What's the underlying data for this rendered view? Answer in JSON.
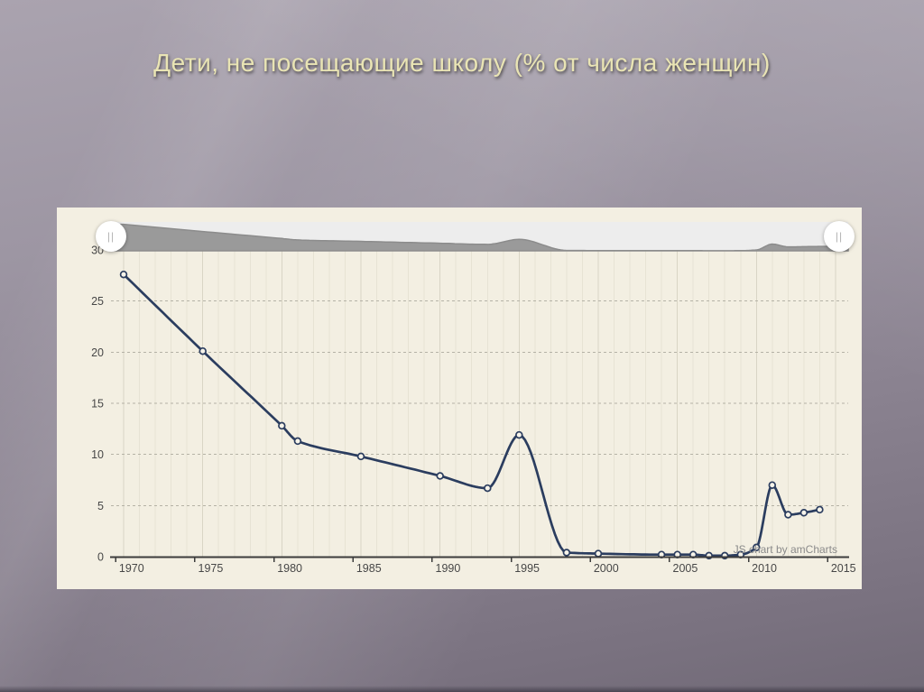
{
  "slide": {
    "title": "Дети, не посещающие школу (% от числа женщин)",
    "title_color": "#e9e4b4",
    "background_top": "#aaa3af",
    "background_bottom": "#716a77"
  },
  "chart": {
    "watermark": "JS chart by amCharts",
    "background": "#f3efe2",
    "line_color": "#2b3d5f",
    "bullet_fill": "#f7f4ea",
    "grid_vertical_color": "#e7e3d4",
    "grid_vertical_major_color": "#d9d5c5",
    "grid_horizontal_color": "#b5b2a6",
    "axis_color": "#3c3c3c",
    "label_color": "#474747",
    "scrollbar": {
      "background": "#ededed",
      "area_fill": "#9a9a9a",
      "area_stroke": "#8c8c8c",
      "handle_glyph": "||"
    }
  },
  "chart_data": {
    "type": "line",
    "title": "Дети, не посещающие школу (% от числа женщин)",
    "smoothed": true,
    "grid": true,
    "legend": false,
    "x": [
      1970,
      1975,
      1980,
      1981,
      1985,
      1990,
      1993,
      1995,
      1998,
      2000,
      2004,
      2005,
      2006,
      2007,
      2008,
      2009,
      2010,
      2011,
      2012,
      2013,
      2014
    ],
    "y": [
      27.6,
      20.1,
      12.8,
      11.3,
      9.8,
      7.9,
      6.7,
      11.9,
      0.4,
      0.3,
      0.2,
      0.2,
      0.2,
      0.1,
      0.1,
      0.2,
      0.9,
      7.0,
      4.1,
      4.3,
      4.6
    ],
    "x_ticks": [
      1970,
      1975,
      1980,
      1985,
      1990,
      1995,
      2000,
      2005,
      2010,
      2015
    ],
    "y_ticks": [
      0,
      5,
      10,
      15,
      20,
      25,
      30
    ],
    "xlim": [
      1969.2,
      2015.8
    ],
    "ylim": [
      0,
      30
    ],
    "xlabel": "",
    "ylabel": ""
  }
}
